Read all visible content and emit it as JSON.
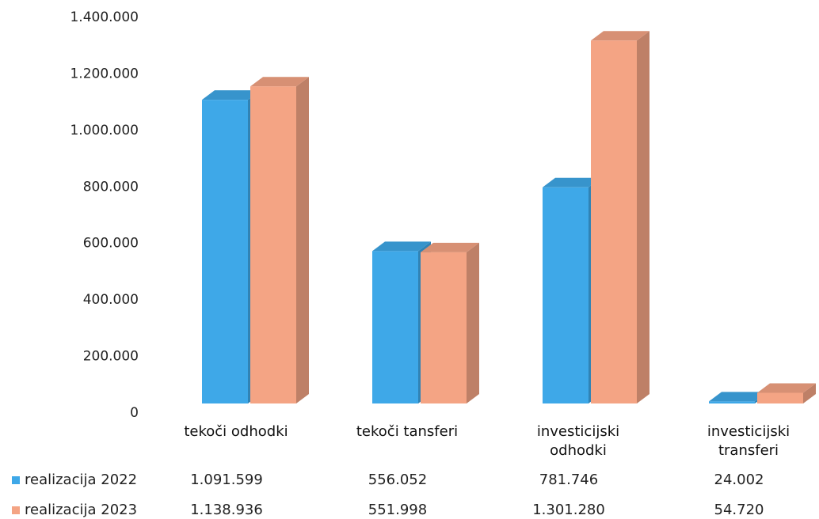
{
  "chart_data": {
    "type": "bar3d",
    "categories": [
      "tekoči odhodki",
      "tekoči tansferi",
      "investicijski odhodki",
      "investicijski transferi"
    ],
    "series": [
      {
        "name": "realizacija 2022",
        "color": "#3ea8e8",
        "values": [
          1091599,
          556052,
          781746,
          24002
        ],
        "value_labels": [
          "1.091.599",
          "556.052",
          "781.746",
          "24.002"
        ]
      },
      {
        "name": "realizacija 2023",
        "color": "#f4a484",
        "values": [
          1138936,
          551998,
          1301280,
          54720
        ],
        "value_labels": [
          "1.138.936",
          "551.998",
          "1.301.280",
          "54.720"
        ]
      }
    ],
    "ylim": [
      0,
      1400000
    ],
    "yticks": [
      0,
      {
        "value": 200000,
        "label": "200.000"
      },
      {
        "value": 400000,
        "label": "400.000"
      },
      {
        "value": 600000,
        "label": "600.000"
      },
      {
        "value": 800000,
        "label": "800.000"
      },
      {
        "value": 1000000,
        "label": "1.000.000"
      },
      {
        "value": 1200000,
        "label": "1.200.000"
      },
      {
        "value": 1400000,
        "label": "1.400.000"
      }
    ],
    "grid": false
  }
}
